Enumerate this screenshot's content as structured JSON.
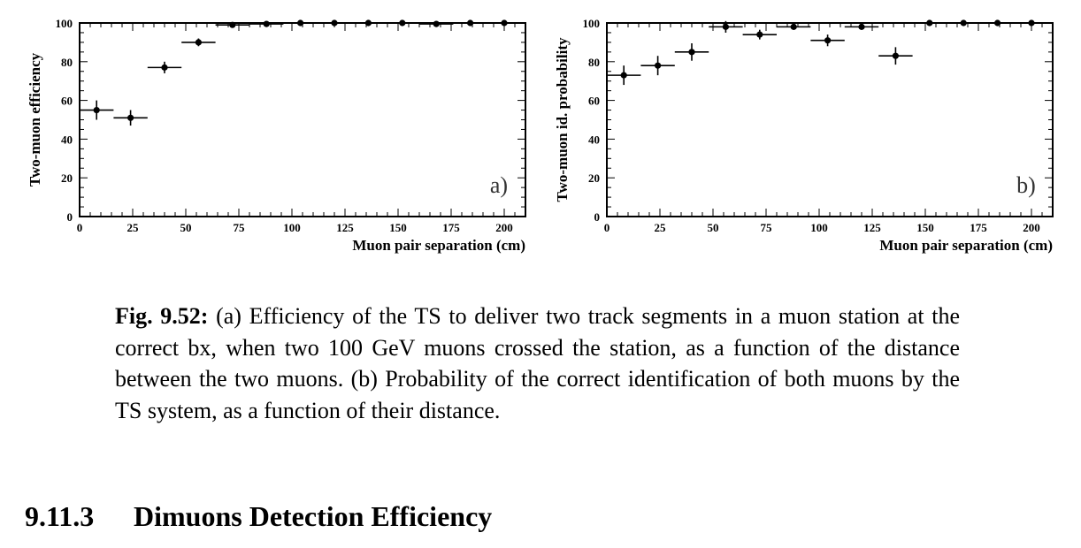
{
  "chart_data": [
    {
      "type": "scatter",
      "panel_label": "a)",
      "xlabel": "Muon pair separation (cm)",
      "ylabel": "Two-muon efficiency",
      "xlim": [
        0,
        210
      ],
      "ylim": [
        0,
        100
      ],
      "xticks": [
        0,
        25,
        50,
        75,
        100,
        125,
        150,
        175,
        200
      ],
      "yticks": [
        0,
        20,
        40,
        60,
        80,
        100
      ],
      "x": [
        8,
        24,
        40,
        56,
        72,
        88,
        104,
        120,
        136,
        152,
        168,
        184,
        200
      ],
      "xerr": 8,
      "y": [
        55,
        51,
        77,
        90,
        99,
        99.5,
        100,
        100,
        100,
        100,
        99.5,
        100,
        100
      ],
      "yerr": [
        5,
        4,
        3,
        2,
        0.5,
        0.5,
        0.3,
        0.3,
        0.3,
        0.3,
        0.3,
        0.3,
        0.3
      ],
      "grid": false
    },
    {
      "type": "scatter",
      "panel_label": "b)",
      "xlabel": "Muon pair separation (cm)",
      "ylabel": "Two-muon id. probability",
      "xlim": [
        0,
        210
      ],
      "ylim": [
        0,
        100
      ],
      "xticks": [
        0,
        25,
        50,
        75,
        100,
        125,
        150,
        175,
        200
      ],
      "yticks": [
        0,
        20,
        40,
        60,
        80,
        100
      ],
      "x": [
        8,
        24,
        40,
        56,
        72,
        88,
        104,
        120,
        136,
        152,
        168,
        184,
        200
      ],
      "xerr": 8,
      "y": [
        73,
        78,
        85,
        98,
        94,
        98,
        91,
        98,
        83,
        100,
        100,
        100,
        100
      ],
      "yerr": [
        5,
        5,
        4.5,
        3,
        2.5,
        1,
        3,
        1,
        4.5,
        0.3,
        0.3,
        0.3,
        0.3
      ],
      "grid": false
    }
  ],
  "caption": {
    "label": "Fig. 9.52:",
    "text": "(a) Efficiency of the TS to deliver two track segments in a muon station at the correct bx, when two 100 GeV muons crossed the station, as a function of the distance between the two muons. (b) Probability of the correct identification of both muons by the TS system, as a function of their distance."
  },
  "section": {
    "number": "9.11.3",
    "title": "Dimuons Detection Efficiency"
  }
}
